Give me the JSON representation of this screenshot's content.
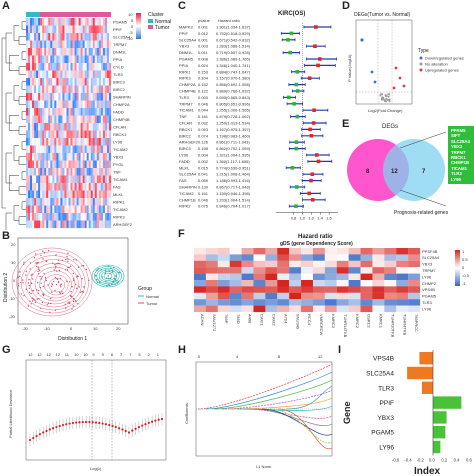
{
  "panel_labels": {
    "a": "A",
    "b": "B",
    "c": "C",
    "d": "D",
    "e": "E",
    "f": "F",
    "g": "G",
    "h": "H",
    "i": "I"
  },
  "panel_a": {
    "legend_title": "Cluster",
    "legend_items": [
      "Normal",
      "Tumor"
    ],
    "scale": [
      "10",
      "5",
      "0",
      "-5",
      "-10"
    ],
    "genes": [
      "PGAM5",
      "PPIF",
      "SLC25A4",
      "TRPM7",
      "DNM1L",
      "PPIA",
      "CYLD",
      "TLR3",
      "BIRC3",
      "BIRC2",
      "SHARPIN",
      "CHMP2A",
      "FADD",
      "CHMP4B",
      "CFLAR",
      "RBCK1",
      "LY96",
      "TICAM2",
      "YBX3",
      "PYGL",
      "TNF",
      "TICAM1",
      "FAS",
      "MLKL",
      "RIPK1",
      "TICAM2",
      "RIPK3",
      "ARHGEF2"
    ],
    "colors": {
      "normal": "#35b8c4",
      "tumor": "#e0579e",
      "high": "#e02050",
      "low": "#2c7fd0"
    }
  },
  "panel_b": {
    "xlabel": "Distribution 1",
    "ylabel": "Distribution 2",
    "legend_title": "Group",
    "legend_items": [
      "Normal",
      "Tumor"
    ],
    "xticks": [
      "-20",
      "-10",
      "0",
      "10",
      "20"
    ],
    "yticks": [
      "20",
      "10",
      "0",
      "-10",
      "-20"
    ]
  },
  "panel_c": {
    "title": "KIRC(OS)",
    "col_headers": [
      "pvalue",
      "Hazard ratio"
    ],
    "genes": [
      "MAPK3",
      "PPIF",
      "SLC25A4",
      "YBX3",
      "DNM1L",
      "PGAM5",
      "PPIA",
      "RIPK1",
      "RIPK3",
      "CHMP2A",
      "CHMP4B",
      "TLR3",
      "TRPM7",
      "TICAM1",
      "TNF",
      "CFLAR",
      "RBCK1",
      "BIRC2",
      "ARHGEF2",
      "BIRC3",
      "LY96",
      "FADD",
      "MLKL",
      "SLC25A4",
      "FAS",
      "SHARPIN",
      "TICAM2",
      "CHMP1B",
      "RIPK2"
    ],
    "pvalues": [
      "0.001",
      "0.012",
      "0.001",
      "0.003",
      "0.011",
      "0.008",
      "0.024",
      "0.153",
      "0.104",
      "0.152",
      "0.122",
      "0.000",
      "0.046",
      "0.044",
      "0.181",
      "0.032",
      "0.093",
      "0.074",
      "0.126",
      "0.158",
      "0.004",
      "0.002",
      "0.015",
      "0.041",
      "0.059",
      "0.139",
      "0.161",
      "0.046",
      "0.075"
    ],
    "hr_text": [
      "1.301(1.034-1.637)",
      "0.752(0.518-0.929)",
      "0.671(0.542-0.832)",
      "1.283(1.088-1.514)",
      "0.719(0.557-0.928)",
      "1.386(1.089-1.765)",
      "1.346(1.040-1.741)",
      "0.884(0.747-1.047)",
      "1.157(0.970-1.380)",
      "0.856(0.692-1.058)",
      "0.889(0.766-1.032)",
      "0.690(0.565-0.843)",
      "0.805(0.651-0.996)",
      "1.255(1.006-1.565)",
      "0.879(0.728-1.062)",
      "1.250(1.019-1.534)",
      "1.167(0.975-1.397)",
      "1.198(0.983-1.460)",
      "0.861(0.711-1.043)",
      "0.862(0.702-1.059)",
      "1.321(1.094-1.595)",
      "1.360(1.117-1.656)",
      "0.774(0.630-0.951)",
      "1.215(1.008-1.464)",
      "1.186(0.993-1.416)",
      "0.867(0.717-1.048)",
      "1.150(0.946-1.398)",
      "1.233(1.004-1.514)",
      "0.846(0.704-1.017)"
    ],
    "hr": [
      1.3,
      0.75,
      0.67,
      1.28,
      0.72,
      1.39,
      1.35,
      0.88,
      1.16,
      0.86,
      0.89,
      0.69,
      0.81,
      1.26,
      0.88,
      1.25,
      1.17,
      1.2,
      0.86,
      0.86,
      1.32,
      1.36,
      0.77,
      1.22,
      1.19,
      0.87,
      1.15,
      1.23,
      0.85
    ],
    "lo": [
      1.03,
      0.52,
      0.54,
      1.09,
      0.56,
      1.09,
      1.04,
      0.75,
      0.97,
      0.69,
      0.77,
      0.57,
      0.65,
      1.01,
      0.73,
      1.02,
      0.98,
      0.98,
      0.71,
      0.7,
      1.09,
      1.12,
      0.63,
      1.01,
      0.99,
      0.72,
      0.95,
      1.0,
      0.7
    ],
    "hi": [
      1.64,
      0.93,
      0.83,
      1.51,
      0.93,
      1.77,
      1.74,
      1.05,
      1.38,
      1.06,
      1.03,
      0.84,
      1.0,
      1.57,
      1.06,
      1.53,
      1.4,
      1.46,
      1.04,
      1.06,
      1.6,
      1.66,
      0.95,
      1.46,
      1.42,
      1.05,
      1.4,
      1.51,
      1.02
    ],
    "xticks": [
      "0.8",
      "1.0",
      "1.2",
      "1.4",
      "1.6"
    ],
    "xlim": [
      0.4,
      1.8
    ]
  },
  "panel_d": {
    "title": "DEGs(Tumor vs. Normal)",
    "xlabel": "Log2(Fold Change)",
    "ylabel": "P Value(-log10)",
    "legend_title": "Type",
    "legend_items": [
      "Downregulated genes",
      "No alteration",
      "Upregulated genes"
    ],
    "colors": [
      "#3b6fd8",
      "#999999",
      "#e03c3c"
    ]
  },
  "panel_e": {
    "top_label": "DEGs",
    "bottom_label": "Prognosis-related genes",
    "left_count": "8",
    "middle_count": "12",
    "right_count": "7",
    "overlap_genes": [
      "PPAM5",
      "SIFT",
      "SLC25A4",
      "YBX3",
      "TRPM7",
      "RBCK1",
      "CHMP1B",
      "TICAM1",
      "TLR3",
      "LY96"
    ]
  },
  "panel_f": {
    "title": "Hazard ratio",
    "subtitle": "gDS (gene Dependency Score)",
    "row_labels": [
      "PPSF4B",
      "SLC25A4",
      "YBX3",
      "TRPM7",
      "LY96",
      "CHMP2",
      "VPS4B",
      "PGAM5",
      "TLR3",
      "LY96"
    ],
    "col_labels": [
      "ACHN",
      "SNU1272",
      "769P",
      "786O",
      "A498",
      "CAKI1",
      "CAKI2",
      "A704",
      "SNU349",
      "RCC4",
      "VMRCRCW",
      "KMRC3",
      "TUHR14TKB",
      "KMRC2",
      "OSRC2",
      "KMRC1",
      "TUHR10TKB",
      "TUHR4TKB",
      "769PRCC"
    ],
    "scale": [
      "1",
      "0.5",
      "0",
      "-0.5",
      "-1"
    ]
  },
  "panel_g": {
    "xlabel": "Log(λ)",
    "ylabel": "Partial Likelihood Deviance",
    "top_ticks": [
      "12",
      "12",
      "12",
      "12",
      "11",
      "10",
      "10",
      "9",
      "9",
      "8",
      "7",
      "7",
      "5",
      "2",
      "1"
    ]
  },
  "panel_h": {
    "xlabel": "L1 Norm",
    "ylabel": "Coefficients",
    "top_ticks": [
      "0",
      "4",
      "8",
      "12"
    ]
  },
  "chart_data": {
    "type": "bar",
    "title": "",
    "xlabel": "Index",
    "ylabel": "Gene",
    "categories": [
      "VPS4B",
      "SLC25A4",
      "TLR3",
      "PPIF",
      "YBX3",
      "PGAM5",
      "LY96"
    ],
    "values": [
      -0.22,
      -0.42,
      -0.18,
      0.46,
      0.22,
      0.2,
      0.12
    ],
    "xticks": [
      "-0.6",
      "-0.4",
      "-0.2",
      "0.0",
      "0.2",
      "0.4",
      "0.6"
    ],
    "xlim": [
      -0.6,
      0.6
    ],
    "colors": {
      "negative": "#f07820",
      "positive": "#49c23a"
    }
  }
}
